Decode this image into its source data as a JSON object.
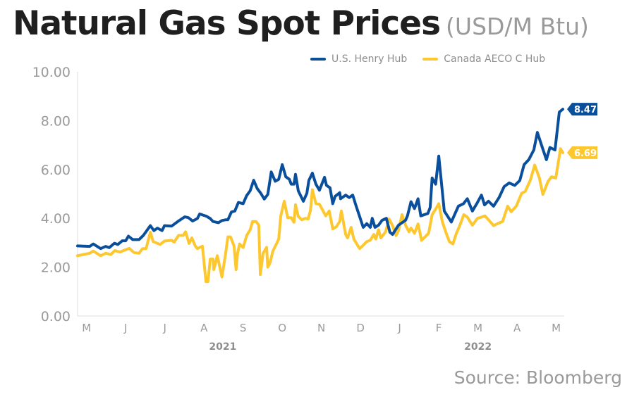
{
  "chart_data": {
    "type": "line",
    "title": "Natural Gas Spot Prices",
    "subtitle": "(USD/M Btu)",
    "xlabel": "",
    "ylabel": "",
    "x_unit": "months since start of May 2021",
    "xlim": [
      0,
      12.4
    ],
    "ylim": [
      0,
      10
    ],
    "grid": false,
    "legend_placement": "top-right",
    "y_ticks": [
      0,
      2,
      4,
      6,
      8,
      10
    ],
    "y_tick_labels": [
      "0.00",
      "2.00",
      "4.00",
      "6.00",
      "8.00",
      "10.00"
    ],
    "x_ticks": [
      {
        "x": 0.23,
        "label": "M"
      },
      {
        "x": 1.23,
        "label": "J"
      },
      {
        "x": 2.23,
        "label": "J"
      },
      {
        "x": 3.23,
        "label": "A"
      },
      {
        "x": 4.23,
        "label": "S"
      },
      {
        "x": 5.23,
        "label": "O"
      },
      {
        "x": 6.23,
        "label": "N"
      },
      {
        "x": 7.23,
        "label": "D"
      },
      {
        "x": 8.23,
        "label": "J"
      },
      {
        "x": 9.23,
        "label": "F"
      },
      {
        "x": 10.23,
        "label": "M"
      },
      {
        "x": 11.23,
        "label": "A"
      },
      {
        "x": 12.23,
        "label": "M"
      }
    ],
    "year_labels": [
      {
        "x": 3.71,
        "label": "2021"
      },
      {
        "x": 10.23,
        "label": "2022"
      }
    ],
    "series": [
      {
        "name": "U.S. Henry Hub",
        "color": "#0a4f9c",
        "end_label": "8.47",
        "x": [
          0,
          0.31,
          0.4,
          0.59,
          0.72,
          0.81,
          0.94,
          1.03,
          1.14,
          1.23,
          1.3,
          1.41,
          1.57,
          1.68,
          1.86,
          1.95,
          2.04,
          2.16,
          2.22,
          2.4,
          2.58,
          2.74,
          2.83,
          2.94,
          3.06,
          3.12,
          3.3,
          3.39,
          3.46,
          3.6,
          3.69,
          3.78,
          3.84,
          3.93,
          4.02,
          4.11,
          4.23,
          4.32,
          4.41,
          4.5,
          4.59,
          4.68,
          4.77,
          4.86,
          4.95,
          5.05,
          5.14,
          5.23,
          5.32,
          5.41,
          5.46,
          5.53,
          5.57,
          5.64,
          5.77,
          5.86,
          5.91,
          6.0,
          6.09,
          6.18,
          6.31,
          6.36,
          6.45,
          6.52,
          6.58,
          6.7,
          6.72,
          6.85,
          6.94,
          7.03,
          7.12,
          7.3,
          7.39,
          7.48,
          7.53,
          7.6,
          7.69,
          7.78,
          7.89,
          7.98,
          8.05,
          8.2,
          8.38,
          8.43,
          8.52,
          8.61,
          8.7,
          8.77,
          8.95,
          9.01,
          9.06,
          9.15,
          9.23,
          9.37,
          9.55,
          9.73,
          9.86,
          9.96,
          10.09,
          10.22,
          10.32,
          10.4,
          10.5,
          10.63,
          10.77,
          10.9,
          11.03,
          11.17,
          11.3,
          11.41,
          11.53,
          11.66,
          11.75,
          11.86,
          11.98,
          12.07,
          12.2,
          12.31,
          12.4
        ],
        "values": [
          2.87,
          2.85,
          2.95,
          2.76,
          2.85,
          2.8,
          2.98,
          2.93,
          3.08,
          3.08,
          3.27,
          3.13,
          3.13,
          3.3,
          3.7,
          3.5,
          3.6,
          3.5,
          3.7,
          3.68,
          3.89,
          4.06,
          4.03,
          3.89,
          3.99,
          4.18,
          4.08,
          3.99,
          3.87,
          3.82,
          3.91,
          3.94,
          3.94,
          4.26,
          4.3,
          4.65,
          4.6,
          4.93,
          5.13,
          5.56,
          5.22,
          5.03,
          4.79,
          4.98,
          5.9,
          5.52,
          5.6,
          6.2,
          5.7,
          5.6,
          5.4,
          5.4,
          5.8,
          5.13,
          4.7,
          5.03,
          5.55,
          5.85,
          5.4,
          5.15,
          5.68,
          5.35,
          5.25,
          4.6,
          4.9,
          5.05,
          4.8,
          4.95,
          4.85,
          4.95,
          4.5,
          3.63,
          3.78,
          3.63,
          4.0,
          3.63,
          3.72,
          3.92,
          4.0,
          3.43,
          3.34,
          3.72,
          3.92,
          4.1,
          4.68,
          4.4,
          4.8,
          4.1,
          4.2,
          4.44,
          5.65,
          5.4,
          6.55,
          4.3,
          3.85,
          4.5,
          4.6,
          4.8,
          4.3,
          4.65,
          4.95,
          4.55,
          4.7,
          4.5,
          4.85,
          5.3,
          5.45,
          5.35,
          5.55,
          6.2,
          6.4,
          6.8,
          7.52,
          6.98,
          6.4,
          6.9,
          6.8,
          8.35,
          8.47
        ]
      },
      {
        "name": "Canada AECO C Hub",
        "color": "#fdc82f",
        "end_label": "6.69",
        "x": [
          0,
          0.31,
          0.4,
          0.59,
          0.72,
          0.85,
          0.95,
          1.08,
          1.21,
          1.32,
          1.44,
          1.57,
          1.66,
          1.75,
          1.86,
          1.93,
          2.11,
          2.22,
          2.4,
          2.47,
          2.58,
          2.7,
          2.76,
          2.85,
          2.92,
          3.01,
          3.06,
          3.19,
          3.28,
          3.33,
          3.39,
          3.46,
          3.48,
          3.57,
          3.69,
          3.78,
          3.84,
          3.91,
          4.0,
          4.05,
          4.09,
          4.14,
          4.23,
          4.32,
          4.41,
          4.47,
          4.56,
          4.63,
          4.67,
          4.74,
          4.83,
          4.86,
          4.92,
          4.99,
          5.08,
          5.14,
          5.19,
          5.28,
          5.37,
          5.46,
          5.53,
          5.57,
          5.64,
          5.73,
          5.82,
          5.89,
          5.95,
          6.0,
          6.09,
          6.18,
          6.34,
          6.43,
          6.52,
          6.61,
          6.7,
          6.74,
          6.85,
          6.9,
          6.99,
          7.06,
          7.17,
          7.21,
          7.3,
          7.39,
          7.48,
          7.57,
          7.62,
          7.69,
          7.75,
          7.87,
          7.96,
          8.05,
          8.14,
          8.2,
          8.29,
          8.38,
          8.47,
          8.52,
          8.61,
          8.7,
          8.79,
          8.88,
          8.97,
          9.06,
          9.14,
          9.23,
          9.32,
          9.41,
          9.5,
          9.59,
          9.68,
          9.77,
          9.87,
          9.96,
          10.09,
          10.22,
          10.32,
          10.41,
          10.54,
          10.63,
          10.76,
          10.86,
          10.99,
          11.08,
          11.21,
          11.35,
          11.44,
          11.57,
          11.68,
          11.8,
          11.89,
          12.02,
          12.11,
          12.22,
          12.34,
          12.4
        ],
        "values": [
          2.47,
          2.57,
          2.66,
          2.47,
          2.57,
          2.52,
          2.68,
          2.62,
          2.7,
          2.77,
          2.6,
          2.57,
          2.76,
          2.76,
          3.43,
          3.05,
          2.93,
          3.07,
          3.1,
          3.03,
          3.3,
          3.3,
          3.45,
          2.97,
          3.2,
          2.86,
          2.76,
          2.86,
          1.41,
          1.41,
          2.33,
          2.33,
          1.9,
          2.47,
          1.6,
          2.52,
          3.24,
          3.24,
          2.86,
          1.9,
          2.57,
          2.95,
          2.8,
          3.29,
          3.53,
          3.87,
          3.87,
          3.72,
          1.7,
          2.57,
          2.81,
          2.0,
          2.19,
          2.66,
          2.95,
          3.15,
          4.08,
          4.7,
          4.03,
          4.03,
          3.84,
          4.56,
          4.08,
          3.94,
          4.0,
          3.97,
          4.31,
          5.17,
          4.6,
          4.58,
          4.1,
          4.3,
          3.57,
          3.65,
          3.87,
          4.3,
          3.34,
          3.2,
          3.63,
          3.15,
          2.86,
          2.76,
          2.9,
          3.05,
          3.1,
          3.34,
          3.15,
          3.53,
          3.2,
          3.45,
          3.97,
          3.7,
          3.29,
          3.5,
          4.15,
          3.72,
          3.45,
          3.6,
          3.39,
          3.77,
          3.1,
          3.24,
          3.39,
          4.15,
          4.35,
          4.6,
          3.87,
          3.43,
          3.05,
          2.95,
          3.39,
          3.72,
          4.15,
          4.05,
          3.72,
          4.0,
          4.05,
          4.1,
          3.87,
          3.7,
          3.8,
          3.87,
          4.5,
          4.27,
          4.5,
          5.03,
          5.1,
          5.56,
          6.18,
          5.66,
          4.98,
          5.5,
          5.7,
          5.65,
          6.85,
          6.69
        ]
      }
    ],
    "source": "Source: Bloomberg"
  }
}
